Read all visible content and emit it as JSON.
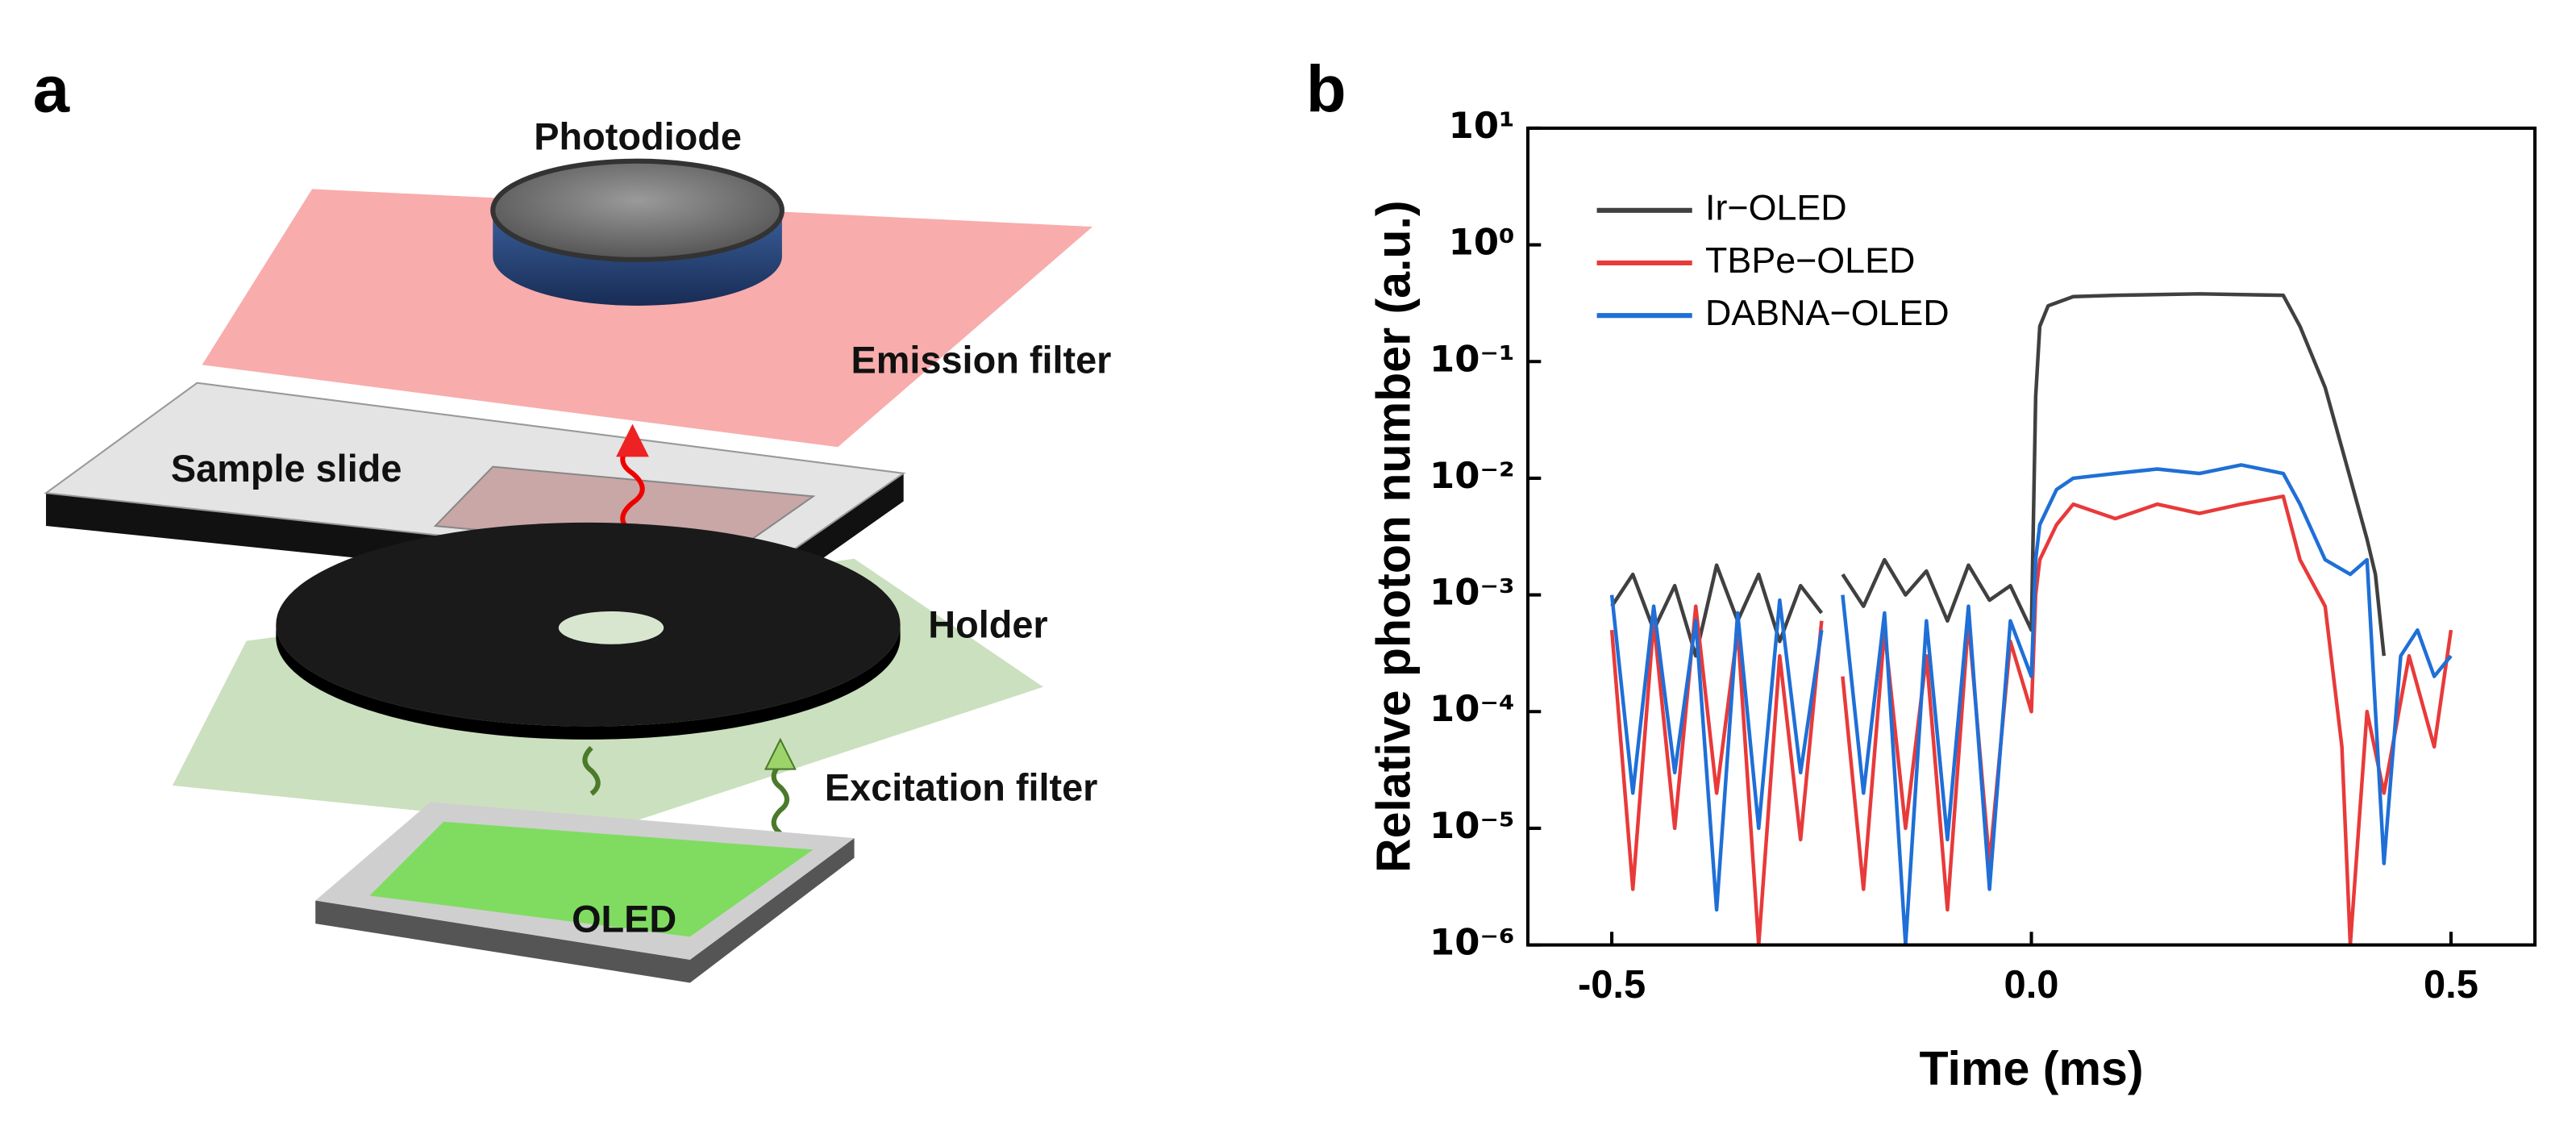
{
  "panel_labels": [
    "a",
    "b"
  ],
  "diagram": {
    "labels": {
      "photodiode": "Photodiode",
      "emission_filter": "Emission filter",
      "sample_slide": "Sample slide",
      "holder": "Holder",
      "excitation_filter": "Excitation filter",
      "oled": "OLED"
    }
  },
  "chart_data": {
    "type": "line",
    "xlabel": "Time (ms)",
    "ylabel": "Relative photon number (a.u.)",
    "xlim": [
      -0.6,
      0.6
    ],
    "ylim": [
      1e-06,
      10
    ],
    "log_y": true,
    "xticks": [
      -0.5,
      {
        "value": 0,
        "label": "0.0"
      },
      0.5
    ],
    "yticks": [
      {
        "value": 10,
        "label": "10¹"
      },
      {
        "value": 1,
        "label": "10⁰"
      },
      {
        "value": 0.1,
        "label": "10⁻¹"
      },
      {
        "value": 0.01,
        "label": "10⁻²"
      },
      {
        "value": 0.001,
        "label": "10⁻³"
      },
      {
        "value": 0.0001,
        "label": "10⁻⁴"
      },
      {
        "value": 1e-05,
        "label": "10⁻⁵"
      },
      {
        "value": 1e-06,
        "label": "10⁻⁶"
      }
    ],
    "legend": "upper left",
    "series": [
      {
        "name": "Ir−OLED",
        "color": "#404040",
        "x": [
          -0.5,
          -0.475,
          -0.45,
          -0.425,
          -0.4,
          -0.375,
          -0.35,
          -0.325,
          -0.3,
          -0.275,
          -0.25,
          -0.24,
          -0.225,
          -0.2,
          -0.175,
          -0.15,
          -0.125,
          -0.1,
          -0.075,
          -0.05,
          -0.025,
          0,
          0.005,
          0.01,
          0.02,
          0.05,
          0.1,
          0.2,
          0.3,
          0.32,
          0.35,
          0.38,
          0.4,
          0.41,
          0.42
        ],
        "values": [
          0.0008,
          0.0015,
          0.0005,
          0.0012,
          0.0003,
          0.0018,
          0.0006,
          0.0015,
          0.0004,
          0.0012,
          0.0007,
          null,
          0.0015,
          0.0008,
          0.002,
          0.001,
          0.0016,
          0.0006,
          0.0018,
          0.0009,
          0.0012,
          0.0005,
          0.05,
          0.2,
          0.3,
          0.36,
          0.37,
          0.38,
          0.37,
          0.2,
          0.06,
          0.01,
          0.003,
          0.0015,
          0.0003
        ]
      },
      {
        "name": "TBPe−OLED",
        "color": "#e83a3a",
        "x": [
          -0.5,
          -0.475,
          -0.45,
          -0.425,
          -0.4,
          -0.375,
          -0.35,
          -0.325,
          -0.3,
          -0.275,
          -0.25,
          -0.24,
          -0.225,
          -0.2,
          -0.175,
          -0.15,
          -0.125,
          -0.1,
          -0.075,
          -0.05,
          -0.025,
          0,
          0.005,
          0.01,
          0.03,
          0.05,
          0.1,
          0.15,
          0.2,
          0.25,
          0.3,
          0.32,
          0.35,
          0.37,
          0.38,
          0.4,
          0.42,
          0.45,
          0.48,
          0.5
        ],
        "values": [
          0.0005,
          3e-06,
          0.0006,
          1e-05,
          0.0008,
          2e-05,
          0.0005,
          1e-06,
          0.0003,
          8e-06,
          0.0006,
          null,
          0.0002,
          3e-06,
          0.0005,
          1e-05,
          0.0003,
          2e-06,
          0.0006,
          5e-06,
          0.0004,
          0.0001,
          0.001,
          0.002,
          0.004,
          0.006,
          0.0045,
          0.006,
          0.005,
          0.006,
          0.007,
          0.002,
          0.0008,
          5e-05,
          1e-06,
          0.0001,
          2e-05,
          0.0003,
          5e-05,
          0.0005
        ]
      },
      {
        "name": "DABNA−OLED",
        "color": "#1f6fd6",
        "x": [
          -0.5,
          -0.475,
          -0.45,
          -0.425,
          -0.4,
          -0.375,
          -0.35,
          -0.325,
          -0.3,
          -0.275,
          -0.25,
          -0.24,
          -0.225,
          -0.2,
          -0.175,
          -0.15,
          -0.125,
          -0.1,
          -0.075,
          -0.05,
          -0.025,
          0,
          0.005,
          0.01,
          0.03,
          0.05,
          0.1,
          0.15,
          0.2,
          0.25,
          0.3,
          0.32,
          0.35,
          0.38,
          0.4,
          0.42,
          0.44,
          0.46,
          0.48,
          0.5
        ],
        "values": [
          0.001,
          2e-05,
          0.0008,
          3e-05,
          0.0006,
          2e-06,
          0.0007,
          1e-05,
          0.0009,
          3e-05,
          0.0005,
          null,
          0.001,
          2e-05,
          0.0007,
          1e-06,
          0.0006,
          8e-06,
          0.0008,
          3e-06,
          0.0006,
          0.0002,
          0.002,
          0.004,
          0.008,
          0.01,
          0.011,
          0.012,
          0.011,
          0.013,
          0.011,
          0.006,
          0.002,
          0.0015,
          0.002,
          5e-06,
          0.0003,
          0.0005,
          0.0002,
          0.0003
        ]
      }
    ]
  }
}
